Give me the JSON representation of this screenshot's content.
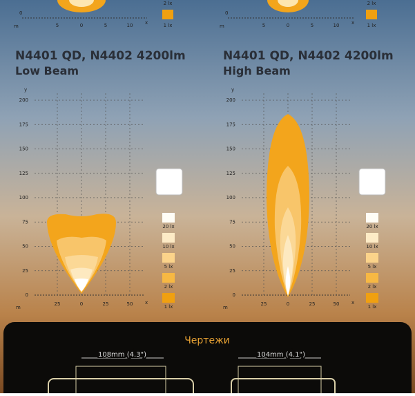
{
  "top_charts": [
    {
      "axis_m": "m",
      "y_tick": "0",
      "x_ticks": [
        "5",
        "0",
        "5",
        "10"
      ],
      "axis_x": "x",
      "legend": [
        "2 lx",
        "1 lx"
      ]
    },
    {
      "axis_m": "m",
      "y_tick": "0",
      "x_ticks": [
        "5",
        "0",
        "5",
        "10"
      ],
      "axis_x": "x",
      "legend": [
        "2 lx",
        "1 lx"
      ]
    }
  ],
  "beam_charts": [
    {
      "title": "N4401 QD, N4402 4200lm",
      "subtitle": "Low Beam",
      "axis_y": "y",
      "axis_x": "x",
      "axis_m": "m",
      "y_ticks": [
        "200",
        "175",
        "150",
        "125",
        "100",
        "75",
        "50",
        "25",
        "0"
      ],
      "x_ticks": [
        "25",
        "0",
        "25",
        "50"
      ],
      "legend": [
        "20 lx",
        "10 lx",
        "5 lx",
        "2 lx",
        "1 lx"
      ]
    },
    {
      "title": "N4401 QD, N4402 4200lm",
      "subtitle": "High Beam",
      "axis_y": "y",
      "axis_x": "x",
      "axis_m": "m",
      "y_ticks": [
        "200",
        "175",
        "150",
        "125",
        "100",
        "75",
        "50",
        "25",
        "0"
      ],
      "x_ticks": [
        "25",
        "0",
        "25",
        "50"
      ],
      "legend": [
        "20 lx",
        "10 lx",
        "5 lx",
        "2 lx",
        "1 lx"
      ]
    }
  ],
  "drawings": {
    "title": "Чертежи",
    "dimensions": [
      "108mm (4.3\")",
      "104mm (4.1\")"
    ]
  }
}
